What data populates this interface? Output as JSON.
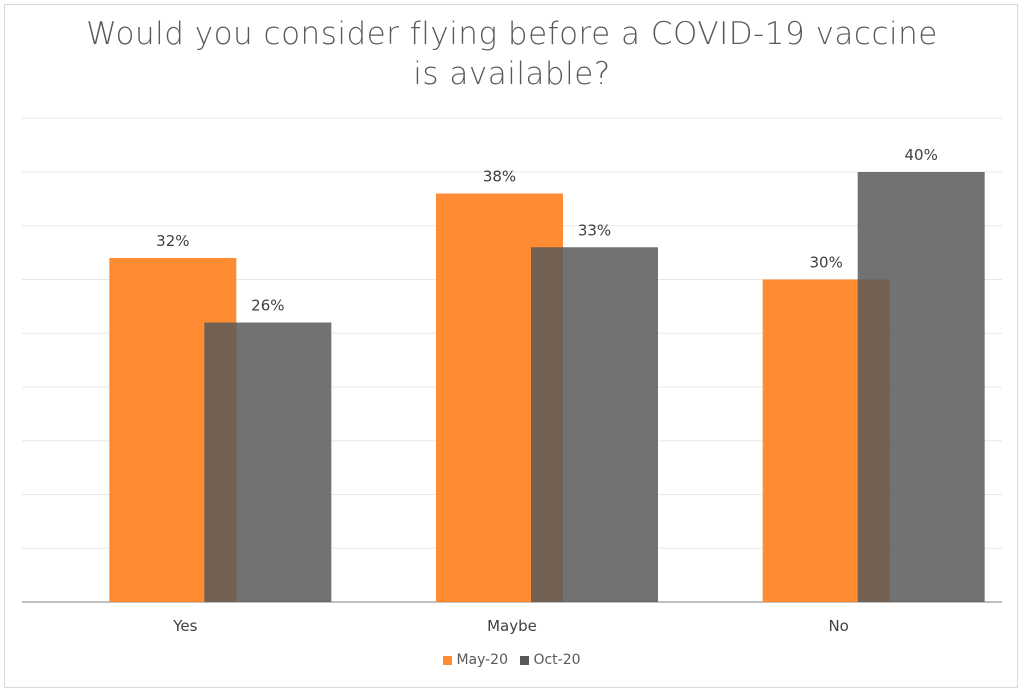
{
  "chart_data": {
    "type": "bar",
    "title_lines": [
      "Would you consider flying before a COVID-19 vaccine",
      "is available?"
    ],
    "categories": [
      "Yes",
      "Maybe",
      "No"
    ],
    "series": [
      {
        "name": "May-20",
        "values": [
          32,
          38,
          30
        ],
        "color": "#ff8c33",
        "labels": [
          "32%",
          "38%",
          "30%"
        ]
      },
      {
        "name": "Oct-20",
        "values": [
          26,
          33,
          40
        ],
        "color": "#595959",
        "opacity": 0.85,
        "labels": [
          "26%",
          "33%",
          "40%"
        ]
      }
    ],
    "ylim": [
      0,
      45
    ],
    "grid": true,
    "legend_position": "bottom"
  }
}
